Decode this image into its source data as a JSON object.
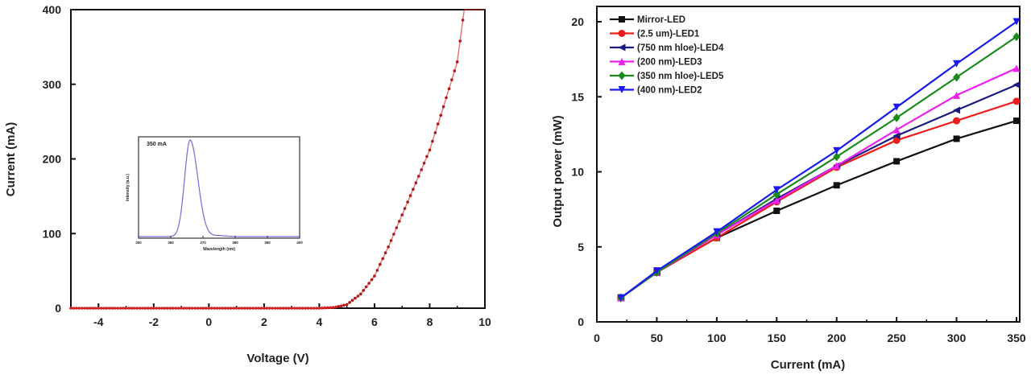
{
  "chart_data": [
    {
      "type": "scatter",
      "xlabel": "Voltage (V)",
      "ylabel": "Current (mA)",
      "xlim": [
        -5,
        10
      ],
      "ylim": [
        0,
        400
      ],
      "xticks": [
        "-4",
        "-2",
        "0",
        "2",
        "4",
        "6",
        "8",
        "10"
      ],
      "yticks": [
        "0",
        "100",
        "200",
        "300",
        "400"
      ],
      "grid": false,
      "color": "#d42020",
      "x": [
        -5,
        4.0,
        4.5,
        4.8,
        5.0,
        5.5,
        6.0,
        6.5,
        7.0,
        7.5,
        8.0,
        8.5,
        9.0,
        9.25,
        10
      ],
      "y": [
        0,
        0,
        1,
        3,
        5,
        19,
        43,
        82,
        125,
        168,
        212,
        270,
        330,
        400,
        400
      ],
      "inset": {
        "type": "line",
        "annotation": "350 mA",
        "xlabel": "Wavelength (nm)",
        "ylabel": "Intensity (a.u.)",
        "xticks": [
          "350",
          "360",
          "370",
          "380",
          "390",
          "400"
        ],
        "xlim": [
          350,
          400
        ],
        "peak_wavelength": 366,
        "color": "#8a6fd6"
      }
    },
    {
      "type": "line",
      "xlabel": "Current (mA)",
      "ylabel": "Output power (mW)",
      "xlim": [
        0,
        350
      ],
      "ylim": [
        0,
        20
      ],
      "xticks": [
        "0",
        "50",
        "100",
        "150",
        "200",
        "250",
        "300",
        "350"
      ],
      "yticks": [
        "0",
        "5",
        "10",
        "15",
        "20"
      ],
      "grid": false,
      "legend": "top-left",
      "x": [
        20,
        50,
        100,
        150,
        200,
        250,
        300,
        350
      ],
      "series": [
        {
          "name": "Mirror-LED",
          "color": "#111111",
          "marker": "square",
          "values": [
            1.6,
            3.3,
            5.6,
            7.4,
            9.1,
            10.7,
            12.2,
            13.4
          ]
        },
        {
          "name": "(2.5 um)-LED1",
          "color": "#ee1c1c",
          "marker": "circle",
          "values": [
            1.6,
            3.3,
            5.6,
            8.0,
            10.3,
            12.1,
            13.4,
            14.7
          ]
        },
        {
          "name": "(750 nm hloe)-LED4",
          "color": "#1a1a80",
          "marker": "triangle-left",
          "values": [
            1.6,
            3.3,
            5.8,
            8.2,
            10.4,
            12.4,
            14.1,
            15.8
          ]
        },
        {
          "name": "(200 nm)-LED3",
          "color": "#ee22ee",
          "marker": "triangle-up",
          "values": [
            1.6,
            3.3,
            5.8,
            8.1,
            10.4,
            12.8,
            15.1,
            16.9
          ]
        },
        {
          "name": "(350 nm hloe)-LED5",
          "color": "#1a8a1a",
          "marker": "diamond",
          "values": [
            1.6,
            3.3,
            5.9,
            8.5,
            11.0,
            13.6,
            16.3,
            19.0
          ]
        },
        {
          "name": "(400 nm)-LED2",
          "color": "#1a1aee",
          "marker": "triangle-down",
          "values": [
            1.6,
            3.4,
            6.0,
            8.8,
            11.4,
            14.3,
            17.2,
            20.0
          ]
        }
      ]
    }
  ]
}
